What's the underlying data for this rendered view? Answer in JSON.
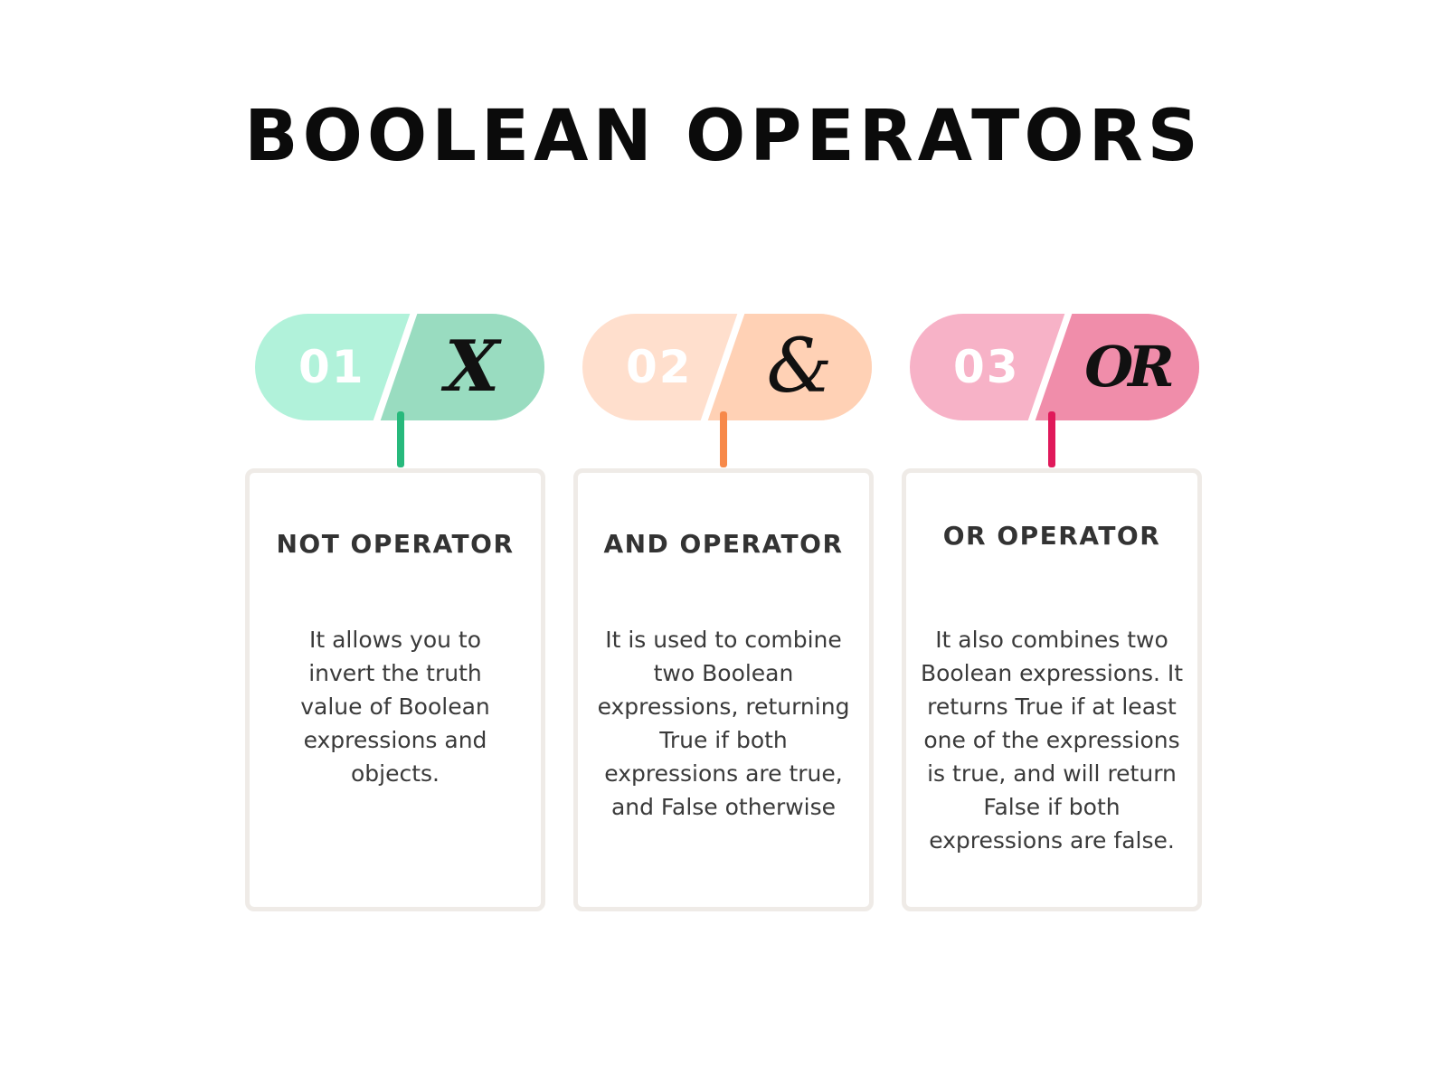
{
  "title": "BOOLEAN OPERATORS",
  "operators": [
    {
      "number": "01",
      "symbol": "X",
      "heading": "NOT OPERATOR",
      "description": "It allows you to invert the truth value of Boolean expressions and objects.",
      "colors": {
        "light": "#b1f2da",
        "dark": "#99dcc0",
        "stem": "#27b97c"
      }
    },
    {
      "number": "02",
      "symbol": "&",
      "heading": "AND OPERATOR",
      "description": "It is used to combine two Boolean expressions, returning True if both expressions are true, and False otherwise",
      "colors": {
        "light": "#ffdfcd",
        "dark": "#ffd1b5",
        "stem": "#f7894a"
      }
    },
    {
      "number": "03",
      "symbol": "OR",
      "heading": "OR OPERATOR",
      "description": "It also combines two Boolean expressions. It returns True if at least one of the expressions is true, and will return False if both expressions are false.",
      "colors": {
        "light": "#f7b2c7",
        "dark": "#f08daa",
        "stem": "#e0195a"
      }
    }
  ]
}
